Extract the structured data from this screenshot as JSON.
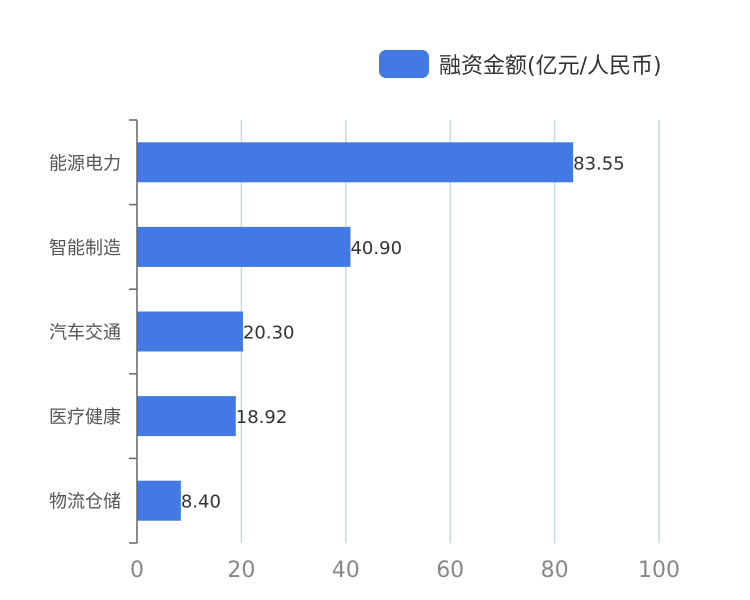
{
  "chart_data": {
    "type": "bar",
    "orientation": "horizontal",
    "categories": [
      "能源电力",
      "智能制造",
      "汽车交通",
      "医疗健康",
      "物流仓储"
    ],
    "series": [
      {
        "name": "融资金额(亿元/人民币)",
        "values": [
          83.55,
          40.9,
          20.3,
          18.92,
          8.4
        ],
        "color": "#4279e3"
      }
    ],
    "data_labels": [
      "83.55",
      "40.90",
      "20.30",
      "18.92",
      "8.40"
    ],
    "x_ticks": [
      "0",
      "20",
      "40",
      "60",
      "80",
      "100"
    ],
    "xlim": [
      0,
      100
    ],
    "grid": true,
    "legend_position": "top-right"
  },
  "colors": {
    "bar": "#4279e3",
    "grid": "#c9dbe3",
    "axis": "#666666",
    "category_label": "#555555",
    "tick_label": "#888888",
    "value_label": "#333333"
  }
}
